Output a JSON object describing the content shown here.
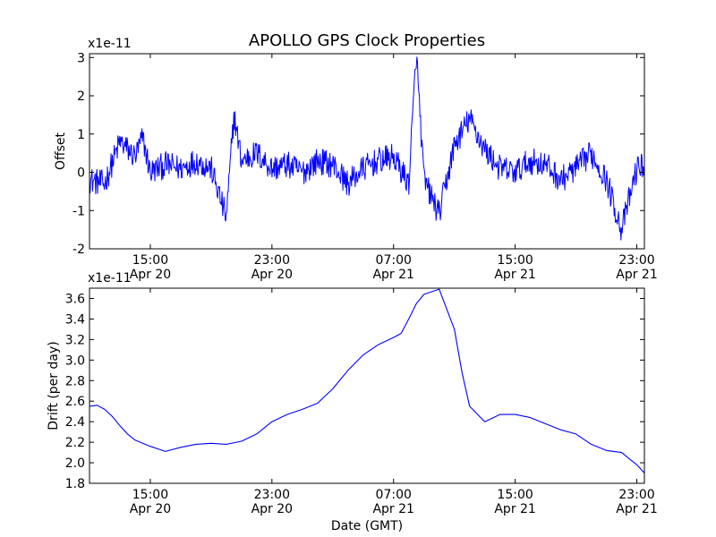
{
  "chart_data": [
    {
      "type": "line",
      "title": "APOLLO GPS Clock Properties",
      "ylabel": "Offset",
      "y_multiplier_label": "x1e-11",
      "ylim": [
        -2,
        3.1
      ],
      "xlim": [
        "Apr 20 11:00",
        "Apr 21 23:30"
      ],
      "yticks": [
        "-2",
        "-1",
        "0",
        "1",
        "2",
        "3"
      ],
      "xticks": [
        {
          "time": "15:00",
          "date": "Apr 20"
        },
        {
          "time": "23:00",
          "date": "Apr 20"
        },
        {
          "time": "07:00",
          "date": "Apr 21"
        },
        {
          "time": "15:00",
          "date": "Apr 21"
        },
        {
          "time": "23:00",
          "date": "Apr 21"
        }
      ],
      "series": [
        {
          "color": "#0000ff",
          "x": [
            "Apr 20 11:00",
            "Apr 20 12:00",
            "Apr 20 13:00",
            "Apr 20 14:00",
            "Apr 20 14:30",
            "Apr 20 15:00",
            "Apr 20 16:00",
            "Apr 20 17:00",
            "Apr 20 18:00",
            "Apr 20 19:00",
            "Apr 20 20:00",
            "Apr 20 20:30",
            "Apr 20 21:00",
            "Apr 20 22:00",
            "Apr 20 23:00",
            "Apr 21 00:00",
            "Apr 21 01:00",
            "Apr 21 02:00",
            "Apr 21 03:00",
            "Apr 21 04:00",
            "Apr 21 05:00",
            "Apr 21 06:00",
            "Apr 21 07:00",
            "Apr 21 08:00",
            "Apr 21 08:30",
            "Apr 21 09:00",
            "Apr 21 10:00",
            "Apr 21 11:00",
            "Apr 21 12:00",
            "Apr 21 13:00",
            "Apr 21 14:00",
            "Apr 21 15:00",
            "Apr 21 16:00",
            "Apr 21 17:00",
            "Apr 21 18:00",
            "Apr 21 19:00",
            "Apr 21 20:00",
            "Apr 21 21:00",
            "Apr 21 22:00",
            "Apr 21 23:00",
            "Apr 21 23:30"
          ],
          "values": [
            -0.2,
            -0.3,
            0.8,
            0.4,
            0.9,
            0.0,
            0.2,
            0.1,
            0.3,
            0.1,
            -1.2,
            1.5,
            0.3,
            0.5,
            0.1,
            0.2,
            0.0,
            0.3,
            0.2,
            -0.3,
            0.1,
            0.3,
            0.4,
            -0.3,
            3.1,
            -0.2,
            -1.1,
            0.7,
            1.4,
            0.6,
            0.1,
            0.0,
            0.3,
            0.2,
            -0.2,
            0.1,
            0.5,
            -0.2,
            -1.5,
            0.1,
            0.2
          ],
          "noise_amplitude": 0.35
        }
      ]
    },
    {
      "type": "line",
      "title": "",
      "xlabel": "Date (GMT)",
      "ylabel": "Drift (per day)",
      "y_multiplier_label": "x1e-11",
      "ylim": [
        1.8,
        3.7
      ],
      "xlim": [
        "Apr 20 11:00",
        "Apr 21 23:30"
      ],
      "yticks": [
        "1.8",
        "2.0",
        "2.2",
        "2.4",
        "2.6",
        "2.8",
        "3.0",
        "3.2",
        "3.4",
        "3.6"
      ],
      "xticks": [
        {
          "time": "15:00",
          "date": "Apr 20"
        },
        {
          "time": "23:00",
          "date": "Apr 20"
        },
        {
          "time": "07:00",
          "date": "Apr 21"
        },
        {
          "time": "15:00",
          "date": "Apr 21"
        },
        {
          "time": "23:00",
          "date": "Apr 21"
        }
      ],
      "series": [
        {
          "color": "#0000ff",
          "x": [
            "Apr 20 11:00",
            "Apr 20 11:30",
            "Apr 20 12:00",
            "Apr 20 12:30",
            "Apr 20 13:00",
            "Apr 20 13:30",
            "Apr 20 14:00",
            "Apr 20 15:00",
            "Apr 20 16:00",
            "Apr 20 17:00",
            "Apr 20 18:00",
            "Apr 20 19:00",
            "Apr 20 20:00",
            "Apr 20 21:00",
            "Apr 20 22:00",
            "Apr 20 23:00",
            "Apr 21 00:00",
            "Apr 21 01:00",
            "Apr 21 02:00",
            "Apr 21 03:00",
            "Apr 21 04:00",
            "Apr 21 05:00",
            "Apr 21 06:00",
            "Apr 21 07:00",
            "Apr 21 07:30",
            "Apr 21 08:00",
            "Apr 21 08:30",
            "Apr 21 09:00",
            "Apr 21 10:00",
            "Apr 21 11:00",
            "Apr 21 11:30",
            "Apr 21 12:00",
            "Apr 21 13:00",
            "Apr 21 14:00",
            "Apr 21 15:00",
            "Apr 21 16:00",
            "Apr 21 17:00",
            "Apr 21 18:00",
            "Apr 21 19:00",
            "Apr 21 20:00",
            "Apr 21 21:00",
            "Apr 21 22:00",
            "Apr 21 23:00",
            "Apr 21 23:30"
          ],
          "values": [
            2.55,
            2.56,
            2.52,
            2.45,
            2.36,
            2.28,
            2.22,
            2.16,
            2.11,
            2.15,
            2.18,
            2.19,
            2.18,
            2.21,
            2.28,
            2.4,
            2.47,
            2.52,
            2.58,
            2.72,
            2.9,
            3.05,
            3.15,
            3.22,
            3.26,
            3.4,
            3.55,
            3.64,
            3.69,
            3.3,
            2.88,
            2.55,
            2.4,
            2.47,
            2.47,
            2.44,
            2.38,
            2.32,
            2.28,
            2.18,
            2.12,
            2.1,
            1.98,
            1.9
          ]
        }
      ]
    }
  ]
}
